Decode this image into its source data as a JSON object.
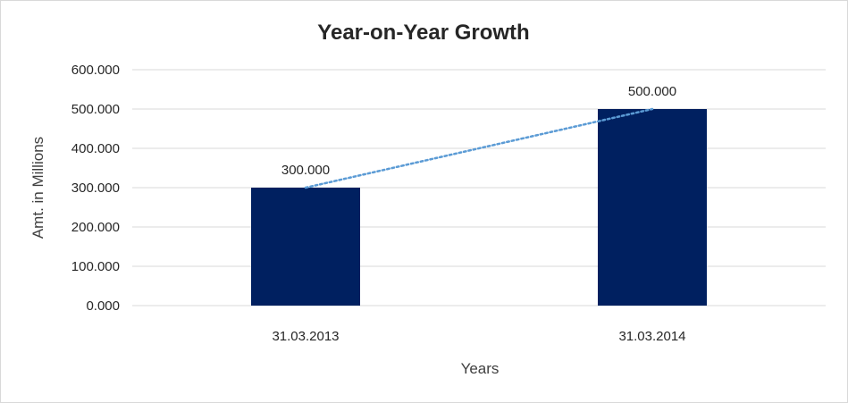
{
  "chart_data": {
    "type": "bar",
    "title": "Year-on-Year Growth",
    "xlabel": "Years",
    "ylabel": "Amt. in Millions",
    "categories": [
      "31.03.2013",
      "31.03.2014"
    ],
    "values": [
      300,
      500
    ],
    "data_labels": [
      "300.000",
      "500.000"
    ],
    "ylim": [
      0,
      600
    ],
    "yticks": [
      0,
      100,
      200,
      300,
      400,
      500,
      600
    ],
    "ytick_labels": [
      "0.000",
      "100.000",
      "200.000",
      "300.000",
      "400.000",
      "500.000",
      "600.000"
    ],
    "grid": true,
    "legend": "none",
    "trendline": {
      "type": "linear",
      "style": "dotted",
      "color": "#5b9bd5"
    },
    "bar_color": "#002060",
    "gridline_color": "#d9d9d9"
  }
}
